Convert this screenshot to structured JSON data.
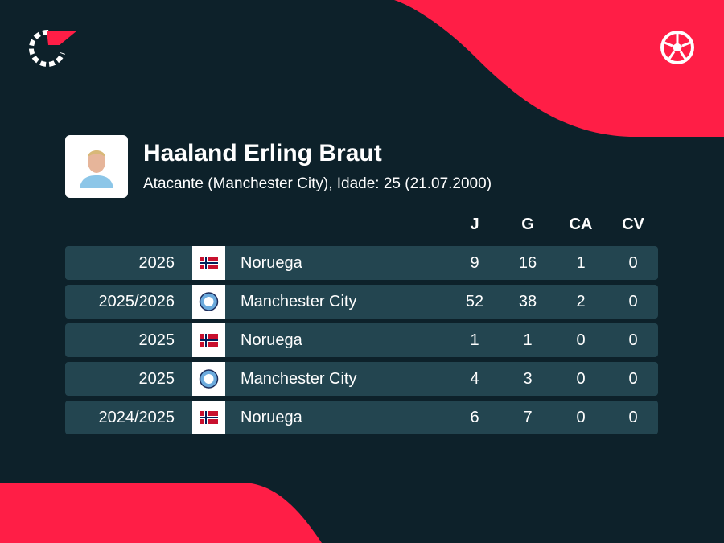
{
  "header": {
    "name": "Haaland Erling Braut",
    "subtitle": "Atacante (Manchester City), Idade: 25 (21.07.2000)"
  },
  "table": {
    "columns": [
      "J",
      "G",
      "CA",
      "CV"
    ],
    "rows": [
      [
        "2026",
        "Noruega",
        "9",
        "16",
        "1",
        "0"
      ],
      [
        "2025/2026",
        "Manchester City",
        "52",
        "38",
        "2",
        "0"
      ],
      [
        "2025",
        "Noruega",
        "1",
        "1",
        "0",
        "0"
      ],
      [
        "2025",
        "Manchester City",
        "4",
        "3",
        "0",
        "0"
      ],
      [
        "2024/2025",
        "Noruega",
        "6",
        "7",
        "0",
        "0"
      ]
    ]
  }
}
